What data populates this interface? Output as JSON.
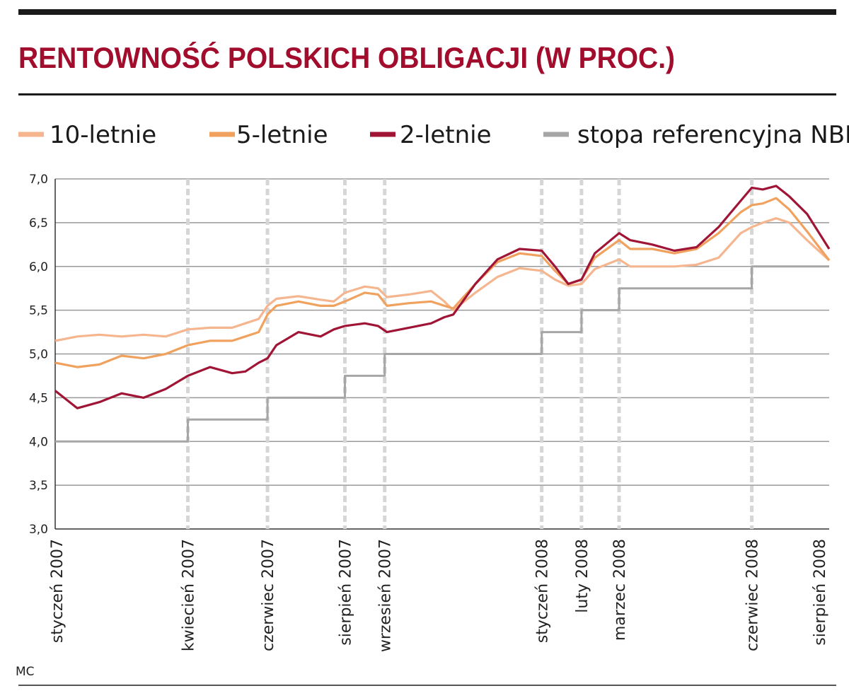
{
  "chart_data": {
    "type": "line",
    "title": "RENTOWNOŚĆ POLSKICH OBLIGACJI (W PROC.)",
    "source": "MC",
    "ylim": [
      3.0,
      7.0
    ],
    "y_ticks": [
      "3,0",
      "3,5",
      "4,0",
      "4,5",
      "5,0",
      "5,5",
      "6,0",
      "6,5",
      "7,0"
    ],
    "x_range": [
      "2007-01",
      "2008-08"
    ],
    "x_ticks": [
      {
        "label": "styczeń 2007",
        "t": 0.0
      },
      {
        "label": "kwiecień 2007",
        "t": 3.0
      },
      {
        "label": "czerwiec 2007",
        "t": 4.8
      },
      {
        "label": "sierpień 2007",
        "t": 6.55
      },
      {
        "label": "wrzesień 2007",
        "t": 7.45
      },
      {
        "label": "styczeń 2008",
        "t": 11.0
      },
      {
        "label": "luty 2008",
        "t": 11.9
      },
      {
        "label": "marzec 2008",
        "t": 12.75
      },
      {
        "label": "czerwiec 2008",
        "t": 15.75
      },
      {
        "label": "sierpień 2008",
        "t": 17.5
      }
    ],
    "grid": true,
    "legend": "top",
    "series": [
      {
        "name": "10-letnie",
        "color": "#f5b58e",
        "points": [
          [
            0,
            5.15
          ],
          [
            0.5,
            5.2
          ],
          [
            1,
            5.22
          ],
          [
            1.5,
            5.2
          ],
          [
            2,
            5.22
          ],
          [
            2.5,
            5.2
          ],
          [
            3,
            5.28
          ],
          [
            3.5,
            5.3
          ],
          [
            4,
            5.3
          ],
          [
            4.3,
            5.35
          ],
          [
            4.6,
            5.4
          ],
          [
            4.8,
            5.55
          ],
          [
            5,
            5.63
          ],
          [
            5.5,
            5.66
          ],
          [
            6,
            5.62
          ],
          [
            6.3,
            5.6
          ],
          [
            6.55,
            5.7
          ],
          [
            7,
            5.77
          ],
          [
            7.3,
            5.75
          ],
          [
            7.5,
            5.65
          ],
          [
            8,
            5.68
          ],
          [
            8.5,
            5.72
          ],
          [
            8.8,
            5.6
          ],
          [
            9,
            5.5
          ],
          [
            9.5,
            5.7
          ],
          [
            10,
            5.88
          ],
          [
            10.5,
            5.98
          ],
          [
            11,
            5.95
          ],
          [
            11.3,
            5.85
          ],
          [
            11.6,
            5.78
          ],
          [
            11.9,
            5.8
          ],
          [
            12.2,
            5.97
          ],
          [
            12.75,
            6.08
          ],
          [
            13,
            6.0
          ],
          [
            13.5,
            6.0
          ],
          [
            14,
            6.0
          ],
          [
            14.5,
            6.02
          ],
          [
            15,
            6.1
          ],
          [
            15.5,
            6.38
          ],
          [
            15.75,
            6.45
          ],
          [
            16,
            6.5
          ],
          [
            16.3,
            6.55
          ],
          [
            16.6,
            6.5
          ],
          [
            17,
            6.3
          ],
          [
            17.5,
            6.07
          ]
        ]
      },
      {
        "name": "5-letnie",
        "color": "#f0a15e",
        "points": [
          [
            0,
            4.9
          ],
          [
            0.5,
            4.85
          ],
          [
            1,
            4.88
          ],
          [
            1.5,
            4.98
          ],
          [
            2,
            4.95
          ],
          [
            2.5,
            5.0
          ],
          [
            3,
            5.1
          ],
          [
            3.5,
            5.15
          ],
          [
            4,
            5.15
          ],
          [
            4.3,
            5.2
          ],
          [
            4.6,
            5.25
          ],
          [
            4.8,
            5.45
          ],
          [
            5,
            5.55
          ],
          [
            5.5,
            5.6
          ],
          [
            6,
            5.55
          ],
          [
            6.3,
            5.55
          ],
          [
            6.55,
            5.6
          ],
          [
            7,
            5.7
          ],
          [
            7.3,
            5.68
          ],
          [
            7.5,
            5.55
          ],
          [
            8,
            5.58
          ],
          [
            8.5,
            5.6
          ],
          [
            8.8,
            5.55
          ],
          [
            9,
            5.52
          ],
          [
            9.5,
            5.8
          ],
          [
            10,
            6.05
          ],
          [
            10.5,
            6.15
          ],
          [
            11,
            6.12
          ],
          [
            11.3,
            5.95
          ],
          [
            11.6,
            5.8
          ],
          [
            11.9,
            5.85
          ],
          [
            12.2,
            6.1
          ],
          [
            12.75,
            6.3
          ],
          [
            13,
            6.2
          ],
          [
            13.5,
            6.2
          ],
          [
            14,
            6.15
          ],
          [
            14.5,
            6.2
          ],
          [
            15,
            6.38
          ],
          [
            15.5,
            6.62
          ],
          [
            15.75,
            6.7
          ],
          [
            16,
            6.72
          ],
          [
            16.3,
            6.78
          ],
          [
            16.6,
            6.65
          ],
          [
            17,
            6.4
          ],
          [
            17.5,
            6.07
          ]
        ]
      },
      {
        "name": "2-letnie",
        "color": "#a01536",
        "points": [
          [
            0,
            4.58
          ],
          [
            0.5,
            4.38
          ],
          [
            1,
            4.45
          ],
          [
            1.5,
            4.55
          ],
          [
            2,
            4.5
          ],
          [
            2.5,
            4.6
          ],
          [
            3,
            4.75
          ],
          [
            3.5,
            4.85
          ],
          [
            4,
            4.78
          ],
          [
            4.3,
            4.8
          ],
          [
            4.6,
            4.9
          ],
          [
            4.8,
            4.95
          ],
          [
            5,
            5.1
          ],
          [
            5.5,
            5.25
          ],
          [
            6,
            5.2
          ],
          [
            6.3,
            5.28
          ],
          [
            6.55,
            5.32
          ],
          [
            7,
            5.35
          ],
          [
            7.3,
            5.32
          ],
          [
            7.5,
            5.25
          ],
          [
            8,
            5.3
          ],
          [
            8.5,
            5.35
          ],
          [
            8.8,
            5.42
          ],
          [
            9,
            5.45
          ],
          [
            9.5,
            5.8
          ],
          [
            10,
            6.08
          ],
          [
            10.5,
            6.2
          ],
          [
            11,
            6.18
          ],
          [
            11.3,
            6.0
          ],
          [
            11.6,
            5.8
          ],
          [
            11.9,
            5.85
          ],
          [
            12.2,
            6.15
          ],
          [
            12.75,
            6.38
          ],
          [
            13,
            6.3
          ],
          [
            13.5,
            6.25
          ],
          [
            14,
            6.18
          ],
          [
            14.5,
            6.22
          ],
          [
            15,
            6.45
          ],
          [
            15.5,
            6.75
          ],
          [
            15.75,
            6.9
          ],
          [
            16,
            6.88
          ],
          [
            16.3,
            6.92
          ],
          [
            16.6,
            6.8
          ],
          [
            17,
            6.6
          ],
          [
            17.5,
            6.2
          ]
        ]
      },
      {
        "name": "stopa referencyjna NBP",
        "color": "#a6a6a6",
        "points": [
          [
            0,
            4.0
          ],
          [
            3.0,
            4.0
          ],
          [
            3.0,
            4.25
          ],
          [
            4.8,
            4.25
          ],
          [
            4.8,
            4.5
          ],
          [
            6.55,
            4.5
          ],
          [
            6.55,
            4.75
          ],
          [
            7.45,
            4.75
          ],
          [
            7.45,
            5.0
          ],
          [
            11.0,
            5.0
          ],
          [
            11.0,
            5.25
          ],
          [
            11.9,
            5.25
          ],
          [
            11.9,
            5.5
          ],
          [
            12.75,
            5.5
          ],
          [
            12.75,
            5.75
          ],
          [
            15.75,
            5.75
          ],
          [
            15.75,
            6.0
          ],
          [
            17.5,
            6.0
          ]
        ]
      }
    ]
  }
}
